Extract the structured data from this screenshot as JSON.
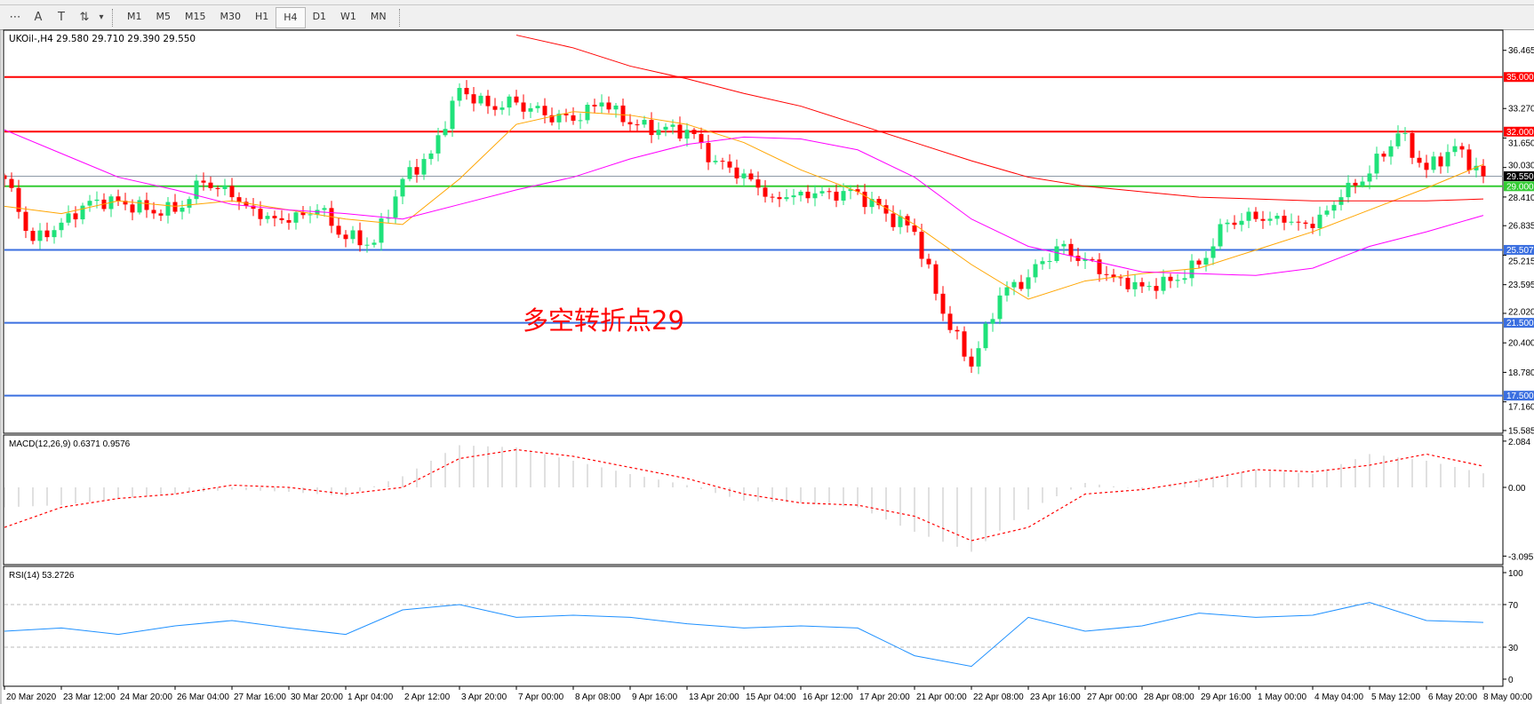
{
  "toolbar": {
    "tools": [
      {
        "name": "fibonacci-fan-icon",
        "glyph": "⋯"
      },
      {
        "name": "text-icon",
        "glyph": "A"
      },
      {
        "name": "text-label-icon",
        "glyph": "T"
      },
      {
        "name": "arrows-icon",
        "glyph": "⇅"
      }
    ],
    "dropdown_glyph": "▾",
    "timeframes": [
      "M1",
      "M5",
      "M15",
      "M30",
      "H1",
      "H4",
      "D1",
      "W1",
      "MN"
    ],
    "active_timeframe": "H4"
  },
  "chart": {
    "title": "UKOil-,H4  29.580 29.710 29.390 29.550",
    "annotation": "多空转折点29",
    "macd_label": "MACD(12,26,9) 0.6371 0.9576",
    "rsi_label": "RSI(14) 53.2726"
  },
  "colors": {
    "bull": "#1fe27a",
    "bear": "#ff0000",
    "ma_fast": "#ffa500",
    "ma_mid": "#ff00ff",
    "ma_slow": "#ff0000",
    "resistance": "#ff0000",
    "pivot": "#33cc33",
    "support": "#3b6fe0",
    "rsi": "#1e90ff",
    "macd_hist": "#c0c0c0",
    "macd_signal": "#ff0000",
    "current": "#8c9aa6"
  },
  "chart_data": {
    "type": "candlestick",
    "symbol": "UKOil-",
    "timeframe": "H4",
    "x_ticks": [
      "20 Mar 2020",
      "23 Mar 12:00",
      "24 Mar 20:00",
      "26 Mar 04:00",
      "27 Mar 16:00",
      "30 Mar 20:00",
      "1 Apr 04:00",
      "2 Apr 12:00",
      "3 Apr 20:00",
      "7 Apr 00:00",
      "8 Apr 08:00",
      "9 Apr 16:00",
      "13 Apr 20:00",
      "15 Apr 04:00",
      "16 Apr 12:00",
      "17 Apr 20:00",
      "21 Apr 00:00",
      "22 Apr 08:00",
      "23 Apr 16:00",
      "27 Apr 00:00",
      "28 Apr 08:00",
      "29 Apr 16:00",
      "1 May 00:00",
      "4 May 04:00",
      "5 May 12:00",
      "6 May 20:00",
      "8 May 00:00"
    ],
    "bars_per_tick": 8,
    "price_ticks": [
      "36.465",
      "33.270",
      "31.650",
      "30.030",
      "28.410",
      "26.835",
      "25.215",
      "23.595",
      "22.020",
      "20.400",
      "18.780",
      "17.160",
      "15.585"
    ],
    "ylim": [
      15.585,
      36.465
    ],
    "close_every_4_bars": [
      29.4,
      26.0,
      27.0,
      28.2,
      28.2,
      27.7,
      27.6,
      29.2,
      28.4,
      27.2,
      27.0,
      27.7,
      26.1,
      25.9,
      29.4,
      30.8,
      34.4,
      33.4,
      33.6,
      32.9,
      32.6,
      33.6,
      32.4,
      32.1,
      32.1,
      30.4,
      29.7,
      28.4,
      28.7,
      28.7,
      28.7,
      27.5,
      26.5,
      22.0,
      19.1,
      23.0,
      24.0,
      25.7,
      25.0,
      24.0,
      23.5,
      23.8,
      24.7,
      27.0,
      27.2,
      27.0,
      26.7,
      28.4,
      29.7,
      31.9,
      29.9,
      31.2,
      29.55
    ],
    "last": {
      "open": 29.58,
      "high": 29.71,
      "low": 29.39,
      "close": 29.55
    },
    "moving_averages_at_ticks": {
      "fast": [
        27.9,
        27.5,
        28.2,
        27.9,
        28.2,
        27.7,
        27.2,
        26.9,
        29.4,
        32.4,
        33.1,
        32.9,
        32.4,
        31.4,
        29.9,
        28.7,
        26.9,
        24.7,
        22.8,
        23.8,
        24.2,
        24.5,
        25.5,
        26.5,
        27.7,
        28.9,
        30.2
      ],
      "mid": [
        32.1,
        30.8,
        29.5,
        28.8,
        28.0,
        27.7,
        27.5,
        27.2,
        28.0,
        28.8,
        29.5,
        30.5,
        31.3,
        31.7,
        31.6,
        31.0,
        29.5,
        27.2,
        25.7,
        25.0,
        24.3,
        24.2,
        24.1,
        24.5,
        25.7,
        26.5,
        27.4
      ],
      "slow": [
        null,
        null,
        null,
        null,
        null,
        null,
        null,
        null,
        null,
        37.3,
        36.6,
        35.6,
        34.9,
        34.1,
        33.4,
        32.4,
        31.4,
        30.4,
        29.5,
        29.0,
        28.7,
        28.4,
        28.3,
        28.2,
        28.2,
        28.2,
        28.3
      ]
    },
    "horizontal_lines": [
      {
        "price": 35.0,
        "label": "35.000",
        "kind": "resistance"
      },
      {
        "price": 32.0,
        "label": "32.000",
        "kind": "resistance"
      },
      {
        "price": 29.0,
        "label": "29.000",
        "kind": "pivot"
      },
      {
        "price": 25.507,
        "label": "25.507",
        "kind": "support"
      },
      {
        "price": 21.5,
        "label": "21.500",
        "kind": "support"
      },
      {
        "price": 17.5,
        "label": "17.500",
        "kind": "support"
      }
    ],
    "current_price": {
      "price": 29.55,
      "label": "29.550"
    },
    "macd": {
      "ticks": [
        "2.084",
        "0.00",
        "-3.0957"
      ],
      "histogram_at_ticks": [
        -0.9,
        -0.8,
        -0.5,
        -0.3,
        -0.1,
        -0.2,
        -0.4,
        0.5,
        1.9,
        1.8,
        1.2,
        0.6,
        0.1,
        -0.6,
        -0.7,
        -0.9,
        -2.0,
        -2.9,
        -1.0,
        0.2,
        -0.1,
        0.4,
        0.8,
        0.6,
        1.5,
        1.2,
        0.6371
      ],
      "signal_at_ticks": [
        -1.8,
        -0.9,
        -0.5,
        -0.3,
        0.1,
        0.0,
        -0.3,
        0.0,
        1.3,
        1.7,
        1.4,
        0.9,
        0.4,
        -0.3,
        -0.7,
        -0.8,
        -1.3,
        -2.4,
        -1.8,
        -0.3,
        -0.1,
        0.3,
        0.8,
        0.7,
        1.0,
        1.5,
        0.9576
      ]
    },
    "rsi": {
      "ticks": [
        "100",
        "70",
        "30",
        "0"
      ],
      "levels": [
        70,
        30
      ],
      "values_at_ticks": [
        45,
        48,
        42,
        50,
        55,
        48,
        42,
        65,
        70,
        58,
        60,
        58,
        52,
        48,
        50,
        48,
        22,
        12,
        58,
        45,
        50,
        62,
        58,
        60,
        72,
        55,
        53.2726
      ]
    }
  }
}
